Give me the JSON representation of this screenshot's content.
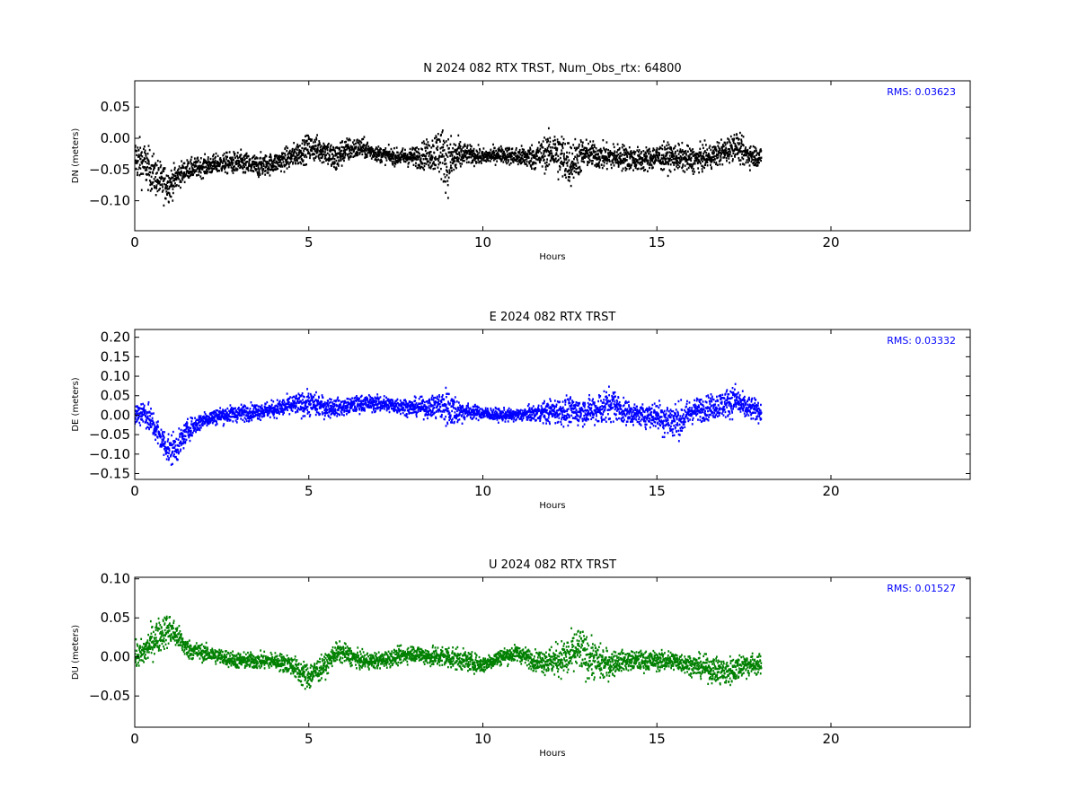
{
  "chart_data": [
    {
      "type": "scatter",
      "title": "N 2024 082 RTX  TRST, Num_Obs_rtx: 64800",
      "xlabel": "Hours",
      "ylabel": "DN (meters)",
      "xlim": [
        0,
        24
      ],
      "ylim": [
        -0.148,
        0.092
      ],
      "xticks": [
        0,
        5,
        10,
        15,
        20
      ],
      "yticks": [
        -0.1,
        -0.05,
        0.0,
        0.05
      ],
      "ytick_labels": [
        "−0.10",
        "−0.05",
        "0.00",
        "0.05"
      ],
      "rms_label": "RMS:  0.03623",
      "color": "#000000",
      "data_extent_hours": [
        0,
        18
      ],
      "series": [
        {
          "x": [
            0,
            0.25,
            0.5,
            0.75,
            1,
            1.25,
            1.5,
            2,
            2.5,
            3,
            3.5,
            4,
            4.5,
            5,
            5.5,
            5.75,
            6,
            6.5,
            7,
            7.5,
            8,
            8.5,
            8.75,
            9,
            9.25,
            9.5,
            10,
            10.5,
            11,
            11.5,
            12,
            12.25,
            12.5,
            12.75,
            13,
            13.5,
            14,
            14.5,
            15,
            15.5,
            16,
            16.5,
            17,
            17.25,
            17.5,
            18
          ],
          "center": [
            -0.03,
            -0.04,
            -0.055,
            -0.07,
            -0.075,
            -0.06,
            -0.05,
            -0.045,
            -0.04,
            -0.04,
            -0.045,
            -0.04,
            -0.03,
            -0.015,
            -0.02,
            -0.035,
            -0.02,
            -0.015,
            -0.025,
            -0.03,
            -0.03,
            -0.025,
            -0.02,
            -0.04,
            -0.03,
            -0.025,
            -0.03,
            -0.025,
            -0.03,
            -0.03,
            -0.02,
            -0.03,
            -0.04,
            -0.03,
            -0.025,
            -0.03,
            -0.03,
            -0.035,
            -0.03,
            -0.03,
            -0.035,
            -0.03,
            -0.02,
            -0.01,
            -0.025,
            -0.03
          ],
          "spread": [
            0.03,
            0.035,
            0.03,
            0.03,
            0.025,
            0.02,
            0.015,
            0.015,
            0.015,
            0.018,
            0.018,
            0.015,
            0.018,
            0.02,
            0.02,
            0.025,
            0.02,
            0.015,
            0.012,
            0.012,
            0.015,
            0.025,
            0.04,
            0.045,
            0.03,
            0.015,
            0.012,
            0.012,
            0.015,
            0.02,
            0.03,
            0.04,
            0.035,
            0.03,
            0.02,
            0.02,
            0.02,
            0.018,
            0.02,
            0.02,
            0.02,
            0.018,
            0.02,
            0.02,
            0.02,
            0.015
          ]
        }
      ]
    },
    {
      "type": "scatter",
      "title": "E 2024 082 RTX  TRST",
      "xlabel": "Hours",
      "ylabel": "DE (meters)",
      "xlim": [
        0,
        24
      ],
      "ylim": [
        -0.165,
        0.22
      ],
      "xticks": [
        0,
        5,
        10,
        15,
        20
      ],
      "yticks": [
        -0.15,
        -0.1,
        -0.05,
        0.0,
        0.05,
        0.1,
        0.15,
        0.2
      ],
      "ytick_labels": [
        "−0.15",
        "−0.10",
        "−0.05",
        "0.00",
        "0.05",
        "0.10",
        "0.15",
        "0.20"
      ],
      "rms_label": "RMS:  0.03332",
      "color": "#0000ff",
      "data_extent_hours": [
        0,
        18
      ],
      "series": [
        {
          "x": [
            0,
            0.25,
            0.5,
            0.75,
            1,
            1.25,
            1.5,
            2,
            2.5,
            3,
            3.5,
            4,
            4.5,
            5,
            5.5,
            6,
            6.5,
            7,
            7.5,
            8,
            8.5,
            8.75,
            9,
            9.25,
            9.5,
            10,
            10.5,
            11,
            11.5,
            12,
            12.5,
            13,
            13.5,
            13.75,
            14,
            14.5,
            15,
            15.25,
            15.5,
            15.75,
            16,
            16.5,
            17,
            17.25,
            17.5,
            18
          ],
          "center": [
            0.0,
            0.01,
            -0.02,
            -0.06,
            -0.09,
            -0.08,
            -0.04,
            -0.01,
            0.0,
            0.005,
            0.01,
            0.015,
            0.025,
            0.03,
            0.02,
            0.02,
            0.03,
            0.03,
            0.025,
            0.02,
            0.02,
            0.025,
            0.02,
            0.01,
            0.01,
            0.005,
            0.0,
            0.0,
            0.005,
            0.01,
            0.01,
            0.01,
            0.02,
            0.03,
            0.01,
            0.0,
            0.0,
            -0.01,
            -0.015,
            -0.01,
            0.01,
            0.02,
            0.03,
            0.04,
            0.02,
            0.01
          ],
          "spread": [
            0.03,
            0.035,
            0.035,
            0.035,
            0.04,
            0.035,
            0.025,
            0.02,
            0.02,
            0.02,
            0.02,
            0.02,
            0.025,
            0.03,
            0.025,
            0.02,
            0.02,
            0.02,
            0.02,
            0.02,
            0.025,
            0.035,
            0.05,
            0.035,
            0.02,
            0.015,
            0.015,
            0.015,
            0.02,
            0.03,
            0.035,
            0.03,
            0.045,
            0.04,
            0.03,
            0.025,
            0.035,
            0.045,
            0.045,
            0.04,
            0.03,
            0.03,
            0.035,
            0.04,
            0.03,
            0.025
          ]
        }
      ]
    },
    {
      "type": "scatter",
      "title": "U 2024 082 RTX  TRST",
      "xlabel": "Hours",
      "ylabel": "DU (meters)",
      "xlim": [
        0,
        24
      ],
      "ylim": [
        -0.09,
        0.102
      ],
      "xticks": [
        0,
        5,
        10,
        15,
        20
      ],
      "yticks": [
        -0.05,
        0.0,
        0.05,
        0.1
      ],
      "ytick_labels": [
        "−0.05",
        "0.00",
        "0.05",
        "0.10"
      ],
      "rms_label": "RMS:  0.01527",
      "color": "#008000",
      "data_extent_hours": [
        0,
        18
      ],
      "series": [
        {
          "x": [
            0,
            0.25,
            0.5,
            0.75,
            1,
            1.25,
            1.5,
            2,
            2.5,
            3,
            3.5,
            4,
            4.5,
            4.75,
            5,
            5.5,
            5.75,
            6,
            6.5,
            7,
            7.5,
            8,
            8.5,
            9,
            9.5,
            10,
            10.5,
            11,
            11.5,
            12,
            12.5,
            12.75,
            13,
            13.5,
            14,
            14.5,
            15,
            15.5,
            16,
            16.5,
            17,
            17.5,
            18
          ],
          "center": [
            0.0,
            0.005,
            0.02,
            0.03,
            0.035,
            0.025,
            0.01,
            0.005,
            0.0,
            -0.005,
            -0.005,
            -0.005,
            -0.01,
            -0.02,
            -0.025,
            -0.01,
            0.005,
            0.005,
            -0.005,
            -0.005,
            0.0,
            0.005,
            0.0,
            0.0,
            -0.005,
            -0.01,
            0.0,
            0.005,
            -0.005,
            -0.005,
            0.0,
            0.01,
            0.0,
            -0.01,
            -0.005,
            -0.005,
            -0.005,
            -0.005,
            -0.01,
            -0.015,
            -0.02,
            -0.01,
            -0.01
          ],
          "spread": [
            0.015,
            0.018,
            0.02,
            0.022,
            0.02,
            0.015,
            0.012,
            0.01,
            0.01,
            0.01,
            0.01,
            0.01,
            0.012,
            0.015,
            0.018,
            0.012,
            0.012,
            0.012,
            0.01,
            0.01,
            0.01,
            0.01,
            0.012,
            0.015,
            0.012,
            0.01,
            0.01,
            0.01,
            0.012,
            0.018,
            0.025,
            0.028,
            0.025,
            0.02,
            0.012,
            0.012,
            0.012,
            0.012,
            0.012,
            0.015,
            0.018,
            0.015,
            0.012
          ]
        }
      ]
    }
  ]
}
